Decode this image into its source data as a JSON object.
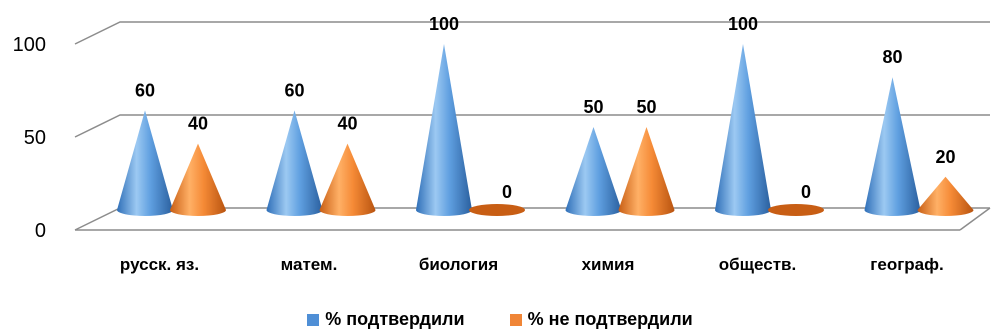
{
  "chart_data": {
    "type": "bar",
    "style": "3d-cone",
    "title": "",
    "xlabel": "",
    "ylabel": "",
    "ylim": [
      0,
      100
    ],
    "yticks": [
      "0",
      "50",
      "100"
    ],
    "grid": true,
    "legend_position": "bottom",
    "categories": [
      "русск. яз.",
      "матем.",
      "биология",
      "химия",
      "обществ.",
      "географ."
    ],
    "series": [
      {
        "name": "% подтвердили",
        "color": "#4f8fd6",
        "values": [
          60,
          60,
          100,
          50,
          100,
          80
        ]
      },
      {
        "name": "% не подтвердили",
        "color": "#f08536",
        "values": [
          40,
          40,
          0,
          50,
          0,
          20
        ]
      }
    ]
  }
}
